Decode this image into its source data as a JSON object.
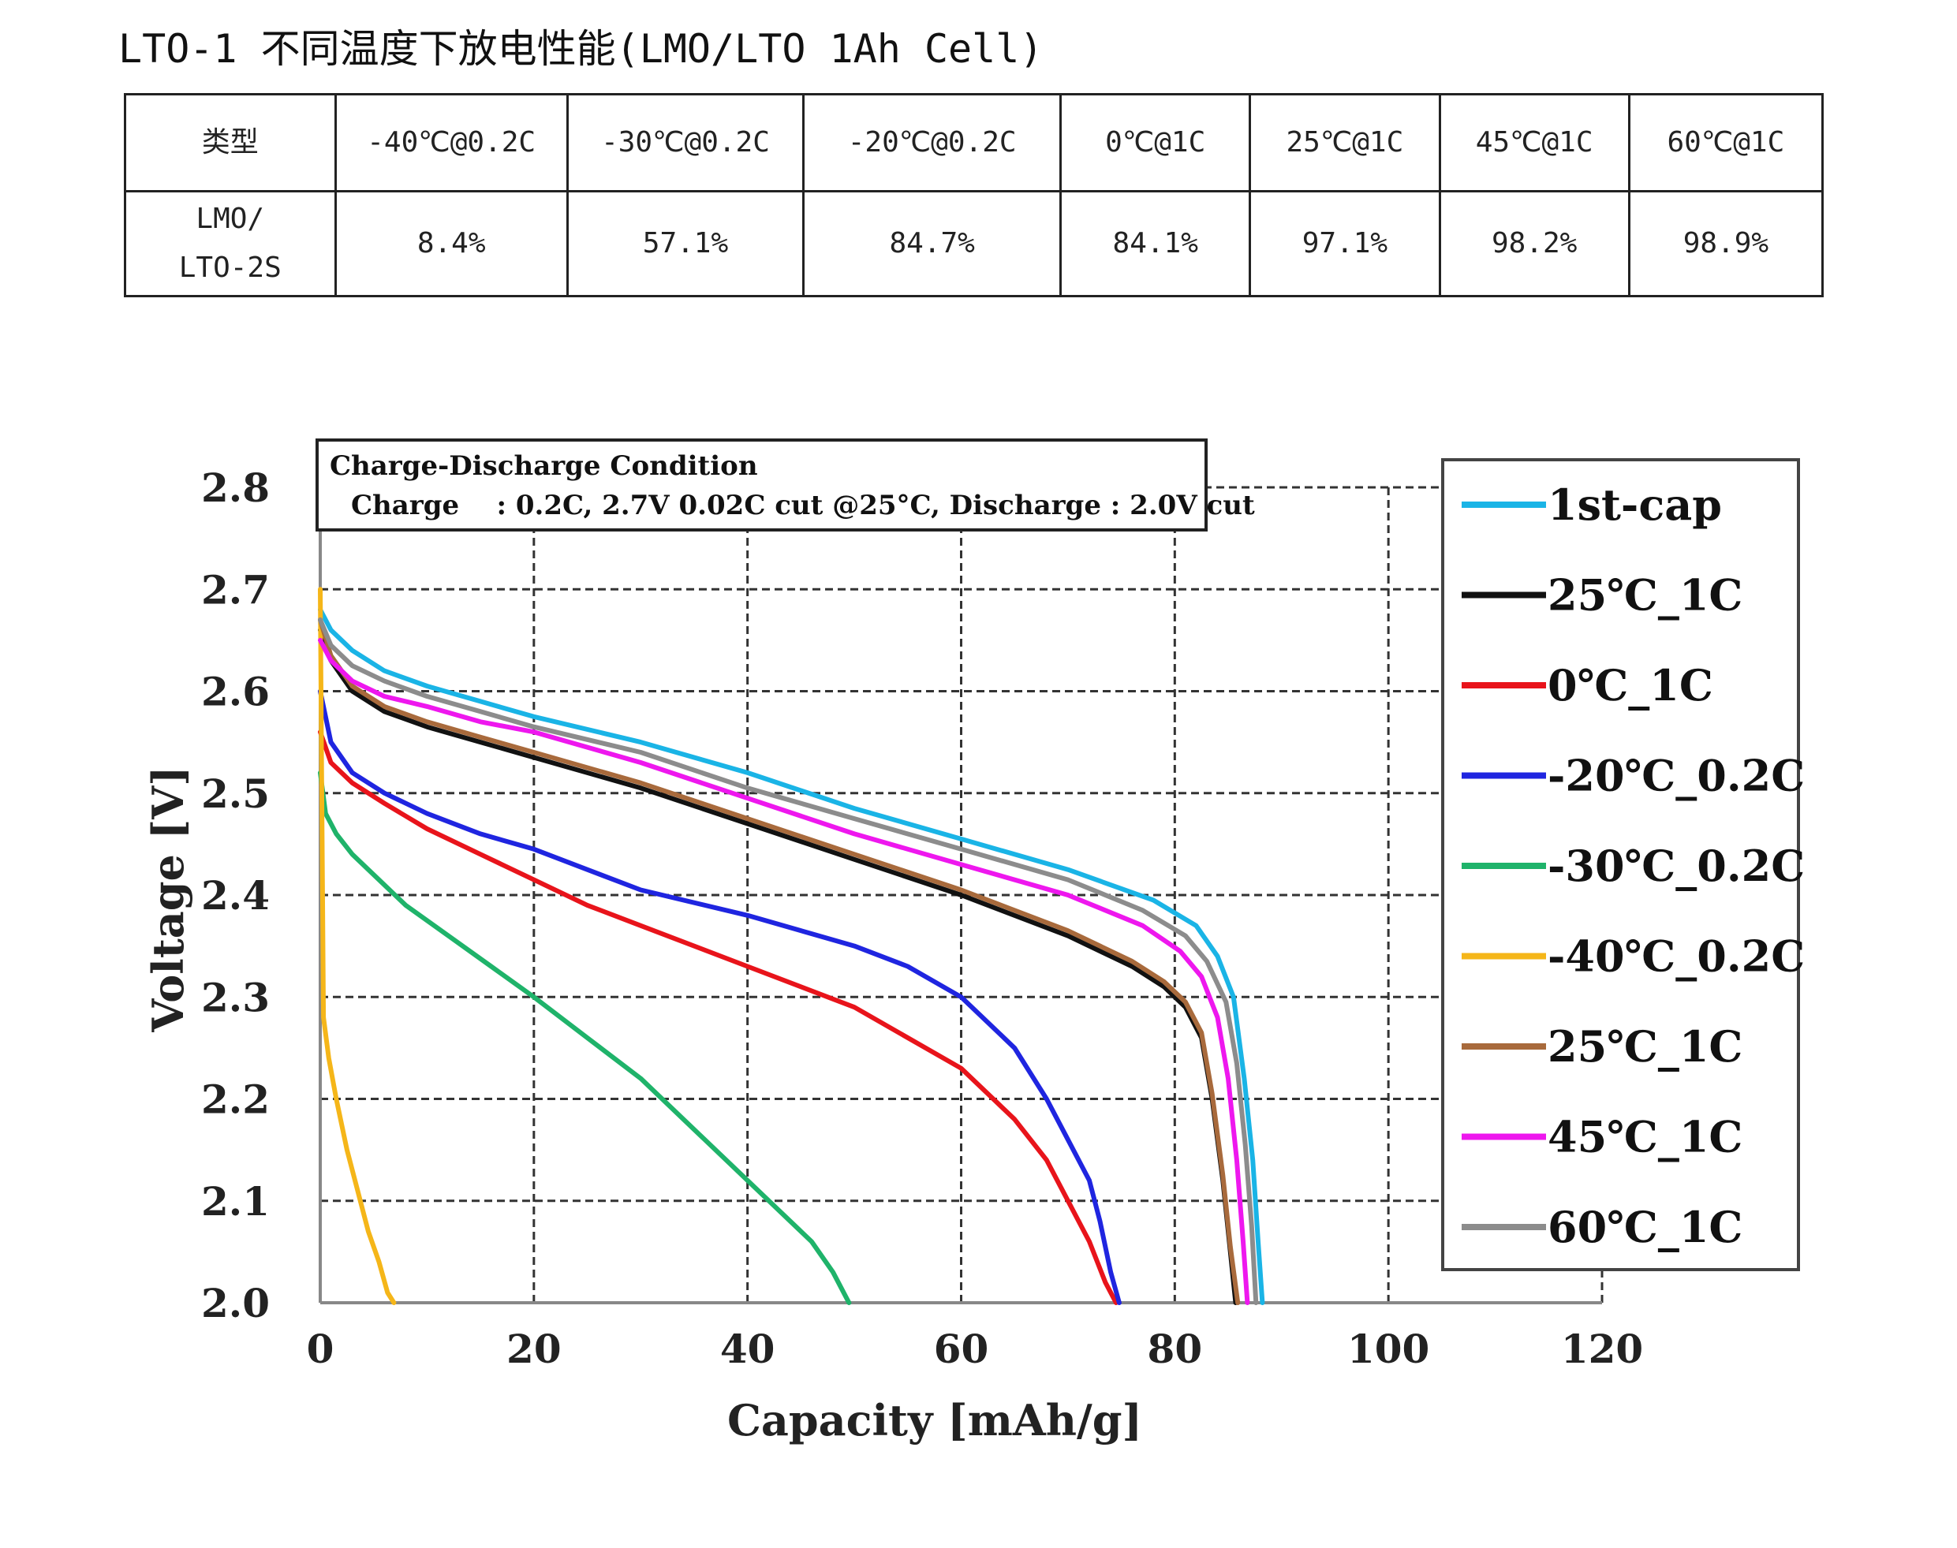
{
  "page": {
    "title": "LTO-1 不同温度下放电性能(LMO/LTO 1Ah Cell)"
  },
  "table": {
    "headers": [
      "类型",
      "-40℃@0.2C",
      "-30℃@0.2C",
      "-20℃@0.2C",
      "0℃@1C",
      "25℃@1C",
      "45℃@1C",
      "60℃@1C"
    ],
    "row": {
      "type_line1": "LMO/",
      "type_line2": "LTO-2S",
      "values": [
        "8.4%",
        "57.1%",
        "84.7%",
        "84.1%",
        "97.1%",
        "98.2%",
        "98.9%"
      ]
    }
  },
  "chart_data": {
    "type": "line",
    "title": "",
    "xlabel": "Capacity [mAh/g]",
    "ylabel": "Voltage [V]",
    "xlim": [
      0,
      120
    ],
    "ylim": [
      2.0,
      2.8
    ],
    "xticks": [
      "0",
      "20",
      "40",
      "60",
      "80",
      "100",
      "120"
    ],
    "yticks": [
      "2.0",
      "2.1",
      "2.2",
      "2.3",
      "2.4",
      "2.5",
      "2.6",
      "2.7",
      "2.8"
    ],
    "grid": true,
    "legend_position": "right",
    "annotation": {
      "line1": "Charge-Discharge Condition",
      "line2": "Charge    : 0.2C, 2.7V 0.02C cut @25°C, Discharge : 2.0V cut"
    },
    "series": [
      {
        "name": "1st-cap",
        "color": "#1ab4e6",
        "x": [
          0,
          1,
          3,
          6,
          10,
          15,
          20,
          30,
          40,
          50,
          60,
          70,
          78,
          82,
          84,
          85.5,
          86.5,
          87.3,
          87.8,
          88.2
        ],
        "y": [
          2.68,
          2.66,
          2.64,
          2.62,
          2.605,
          2.59,
          2.575,
          2.55,
          2.52,
          2.485,
          2.455,
          2.425,
          2.395,
          2.37,
          2.34,
          2.3,
          2.22,
          2.14,
          2.06,
          2.0
        ]
      },
      {
        "name": "25℃_1C",
        "color": "#111111",
        "x": [
          0,
          1,
          3,
          6,
          10,
          15,
          20,
          30,
          40,
          50,
          60,
          70,
          76,
          79,
          81,
          82.5,
          83.5,
          84.5,
          85.2,
          85.7
        ],
        "y": [
          2.66,
          2.63,
          2.6,
          2.58,
          2.565,
          2.55,
          2.535,
          2.505,
          2.47,
          2.435,
          2.4,
          2.36,
          2.33,
          2.31,
          2.29,
          2.26,
          2.2,
          2.12,
          2.05,
          2.0
        ]
      },
      {
        "name": "0℃_1C",
        "color": "#e8141b",
        "x": [
          0,
          1,
          3,
          6,
          10,
          15,
          20,
          25,
          30,
          40,
          50,
          60,
          65,
          68,
          70,
          72,
          73.5,
          74.5
        ],
        "y": [
          2.56,
          2.53,
          2.51,
          2.49,
          2.465,
          2.44,
          2.415,
          2.39,
          2.37,
          2.33,
          2.29,
          2.23,
          2.18,
          2.14,
          2.1,
          2.06,
          2.02,
          2.0
        ]
      },
      {
        "name": "-20℃_0.2C",
        "color": "#1f25e0",
        "x": [
          0,
          1,
          3,
          6,
          10,
          15,
          20,
          25,
          30,
          40,
          50,
          55,
          60,
          65,
          68,
          70,
          72,
          73,
          74,
          74.8
        ],
        "y": [
          2.6,
          2.55,
          2.52,
          2.5,
          2.48,
          2.46,
          2.445,
          2.425,
          2.405,
          2.38,
          2.35,
          2.33,
          2.3,
          2.25,
          2.2,
          2.16,
          2.12,
          2.08,
          2.03,
          2.0
        ]
      },
      {
        "name": "-30℃_0.2C",
        "color": "#1fb36a",
        "x": [
          0,
          0.5,
          1.5,
          3,
          5,
          8,
          12,
          16,
          20,
          25,
          30,
          35,
          40,
          43,
          46,
          48,
          49.5
        ],
        "y": [
          2.52,
          2.48,
          2.46,
          2.44,
          2.42,
          2.39,
          2.36,
          2.33,
          2.3,
          2.26,
          2.22,
          2.17,
          2.12,
          2.09,
          2.06,
          2.03,
          2.0
        ]
      },
      {
        "name": "-40℃_0.2C",
        "color": "#f5b619",
        "x": [
          0,
          0.3,
          0.8,
          1.5,
          2.5,
          3.5,
          4.5,
          5.5,
          6.3,
          6.9
        ],
        "y": [
          2.7,
          2.28,
          2.24,
          2.2,
          2.15,
          2.11,
          2.07,
          2.04,
          2.01,
          2.0
        ]
      },
      {
        "name": "25℃_1C",
        "color": "#a86a3c",
        "x": [
          0,
          1,
          3,
          6,
          10,
          15,
          20,
          30,
          40,
          50,
          60,
          70,
          76,
          79,
          81,
          82.5,
          83.5,
          84.5,
          85.2,
          85.9
        ],
        "y": [
          2.67,
          2.635,
          2.605,
          2.585,
          2.57,
          2.555,
          2.54,
          2.51,
          2.475,
          2.44,
          2.405,
          2.365,
          2.335,
          2.315,
          2.295,
          2.265,
          2.205,
          2.125,
          2.055,
          2.0
        ]
      },
      {
        "name": "45℃_1C",
        "color": "#ee17ee",
        "x": [
          0,
          1,
          3,
          6,
          10,
          15,
          20,
          30,
          40,
          50,
          60,
          70,
          77,
          80.5,
          82.5,
          84,
          85,
          85.8,
          86.4,
          86.8
        ],
        "y": [
          2.65,
          2.63,
          2.61,
          2.595,
          2.585,
          2.57,
          2.56,
          2.53,
          2.495,
          2.46,
          2.43,
          2.4,
          2.37,
          2.345,
          2.32,
          2.28,
          2.22,
          2.14,
          2.06,
          2.0
        ]
      },
      {
        "name": "60℃_1C",
        "color": "#8c8c8c",
        "x": [
          0,
          1,
          3,
          6,
          10,
          15,
          20,
          30,
          40,
          50,
          60,
          70,
          77,
          81,
          83,
          84.8,
          85.8,
          86.6,
          87.2,
          87.6
        ],
        "y": [
          2.67,
          2.645,
          2.625,
          2.61,
          2.595,
          2.58,
          2.565,
          2.54,
          2.505,
          2.475,
          2.445,
          2.415,
          2.385,
          2.36,
          2.335,
          2.295,
          2.235,
          2.155,
          2.075,
          2.0
        ]
      }
    ]
  }
}
